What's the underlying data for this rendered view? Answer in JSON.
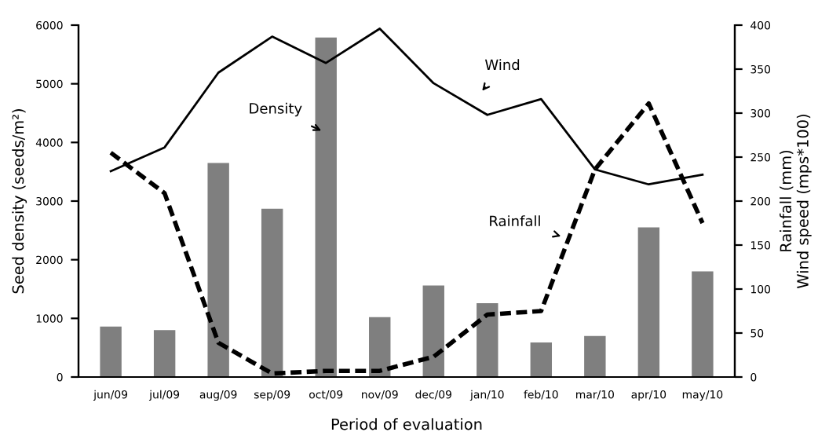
{
  "chart_data": {
    "type": "bar",
    "xlabel": "Period of evaluation",
    "ylabel": "Seed density (seeds/m²)",
    "y2label": "Rainfall (mm)\nWind speed (mps*100)",
    "categories": [
      "jun/09",
      "jul/09",
      "aug/09",
      "sep/09",
      "oct/09",
      "nov/09",
      "dec/09",
      "jan/10",
      "feb/10",
      "mar/10",
      "apr/10",
      "may/10"
    ],
    "series": [
      {
        "name": "Density",
        "color": "#7f7f7f",
        "values": [
          860,
          800,
          3650,
          2870,
          5790,
          1020,
          1560,
          1260,
          590,
          700,
          2550,
          1800
        ]
      },
      {
        "name": "Wind",
        "type": "line",
        "axis": "y2",
        "color": "#000000",
        "line_style": "solid",
        "values": [
          234,
          261,
          346,
          387,
          357,
          396,
          334,
          298,
          316,
          236,
          219,
          230
        ]
      },
      {
        "name": "Rainfall",
        "type": "line",
        "axis": "y2",
        "color": "#000000",
        "line_style": "dashed",
        "values": [
          255,
          209,
          39,
          4,
          7,
          7,
          23,
          71,
          75,
          236,
          311,
          175
        ]
      }
    ],
    "ylim": [
      0,
      6000
    ],
    "yticks": [
      0,
      1000,
      2000,
      3000,
      4000,
      5000,
      6000
    ],
    "y2lim": [
      0,
      400
    ],
    "y2ticks": [
      0,
      50,
      100,
      150,
      200,
      250,
      300,
      350,
      400
    ],
    "grid": false,
    "legend": false
  }
}
